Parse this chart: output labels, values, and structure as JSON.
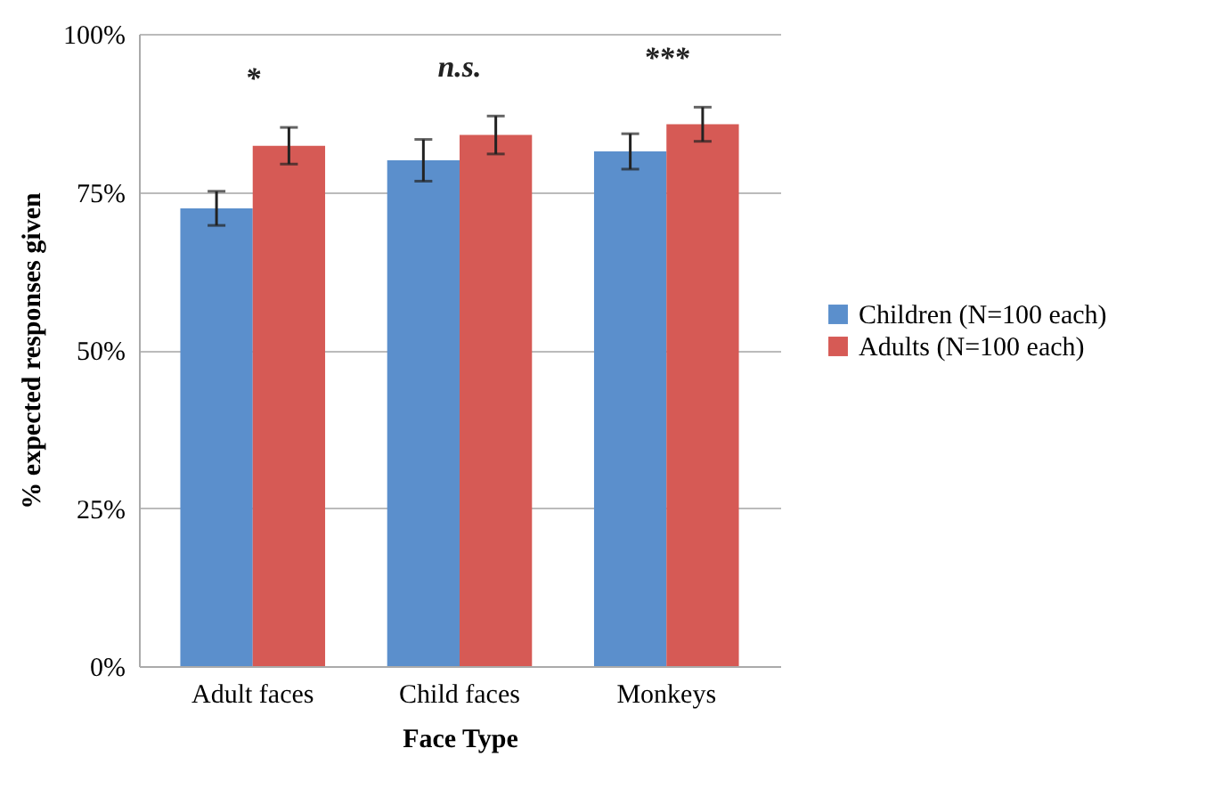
{
  "chart_data": {
    "type": "bar",
    "xlabel": "Face Type",
    "ylabel": "% expected responses given",
    "categories": [
      "Adult faces",
      "Child faces",
      "Monkeys"
    ],
    "series": [
      {
        "name": "Children (N=100 each)",
        "color": "#5b8fcc",
        "values": [
          72.4,
          80.0,
          81.4
        ],
        "errors": [
          2.7,
          3.3,
          2.8
        ]
      },
      {
        "name": "Adults (N=100 each)",
        "color": "#d65a55",
        "values": [
          82.3,
          84.0,
          85.7
        ],
        "errors": [
          2.9,
          3.0,
          2.7
        ]
      }
    ],
    "ylim": [
      0,
      100
    ],
    "yticks": [
      {
        "value": 0,
        "label": "0%"
      },
      {
        "value": 25,
        "label": "25%"
      },
      {
        "value": 50,
        "label": "50%"
      },
      {
        "value": 75,
        "label": "75%"
      },
      {
        "value": 100,
        "label": "100%"
      }
    ],
    "annotations": [
      "*",
      "n.s.",
      "***"
    ],
    "grid": "y",
    "legend": "right"
  }
}
